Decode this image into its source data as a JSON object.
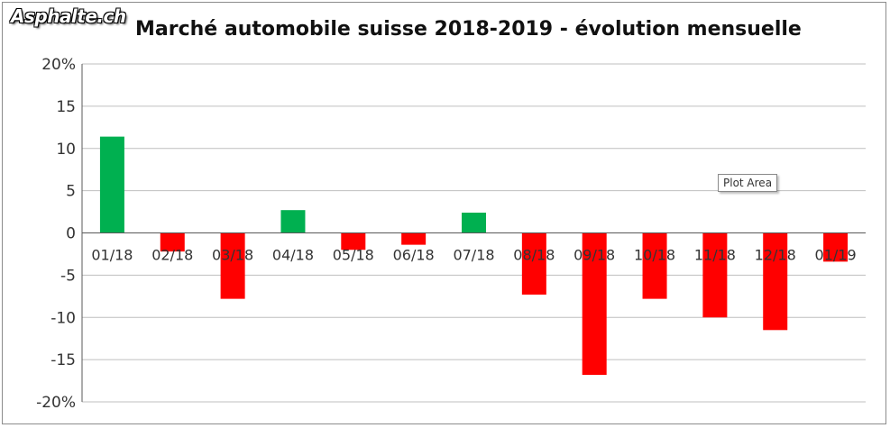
{
  "logo_text": "Asphalte.ch",
  "tooltip_text": "Plot Area",
  "chart_data": {
    "type": "bar",
    "title": "Marché automobile suisse 2018-2019 - évolution mensuelle",
    "xlabel": "",
    "ylabel": "",
    "categories": [
      "01/18",
      "02/18",
      "03/18",
      "04/18",
      "05/18",
      "06/18",
      "07/18",
      "08/18",
      "09/18",
      "10/18",
      "11/18",
      "12/18",
      "01/19"
    ],
    "values": [
      11.4,
      -2.2,
      -7.8,
      2.7,
      -2.0,
      -1.4,
      2.4,
      -7.3,
      -16.8,
      -7.8,
      -10.0,
      -11.5,
      -3.4
    ],
    "ylim": [
      -20,
      20
    ],
    "yticks": [
      20,
      15,
      10,
      5,
      0,
      -5,
      -10,
      -15,
      -20
    ],
    "ytick_labels": [
      "20%",
      "15",
      "10",
      "5",
      "0",
      "-5",
      "-10",
      "-15",
      "-20%"
    ],
    "grid": true,
    "colors": {
      "positive": "#00b050",
      "negative": "#ff0000",
      "grid": "#bfbfbf",
      "axis": "#595959"
    }
  }
}
